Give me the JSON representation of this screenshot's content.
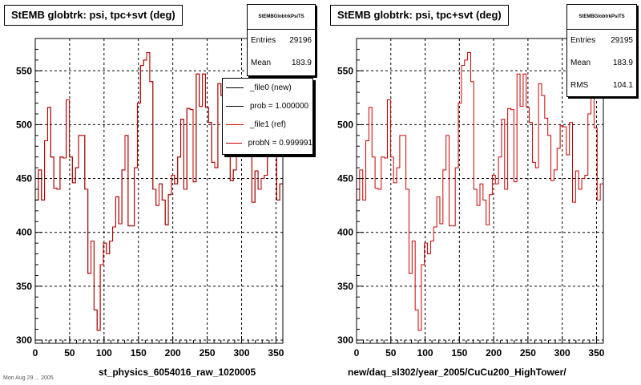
{
  "chart_data": [
    {
      "type": "line",
      "title": "StEMB globtrk: psi, tpc+svt (deg)",
      "xlabel": "st_physics_6054016_raw_1020005",
      "xlim": [
        0,
        360
      ],
      "ylim": [
        297,
        580
      ],
      "x_ticks": [
        0,
        50,
        100,
        150,
        200,
        250,
        300,
        350
      ],
      "y_ticks": [
        300,
        350,
        400,
        450,
        500,
        550
      ],
      "grid": true,
      "series": [
        {
          "name": "_file0 (new)",
          "color": "#000000"
        },
        {
          "name": "_file1 (ref)",
          "color": "#cc0000"
        }
      ],
      "values": [
        430,
        458,
        430,
        485,
        516,
        470,
        441,
        440,
        470,
        469,
        523,
        470,
        446,
        460,
        490,
        490,
        440,
        362,
        392,
        328,
        309,
        370,
        390,
        380,
        392,
        405,
        433,
        408,
        458,
        490,
        406,
        406,
        460,
        520,
        555,
        560,
        567,
        540,
        440,
        425,
        445,
        430,
        407,
        435,
        453,
        445,
        470,
        505,
        440,
        515,
        514,
        447,
        547,
        517,
        547,
        516,
        502,
        465,
        460,
        538,
        527,
        506,
        490,
        448,
        458,
        478,
        499,
        498,
        472,
        502,
        428,
        457,
        440,
        450,
        453,
        510,
        548,
        497,
        430,
        445
      ],
      "stats": {
        "header": "StEMBGlobtrkPsiTS",
        "entries_label": "Entries",
        "entries": "29196",
        "mean_label": "Mean",
        "mean": "183.9"
      },
      "legend": [
        {
          "label": "_file0 (new)",
          "color": "#000000"
        },
        {
          "label": "prob = 1.000000",
          "color": "#000000"
        },
        {
          "label": "_file1 (ref)",
          "color": "#cc0000"
        },
        {
          "label": "probN = 0.999991",
          "color": "#cc0000"
        }
      ]
    },
    {
      "type": "line",
      "title": "StEMB globtrk: psi, tpc+svt (deg)",
      "xlabel": "new/daq_sl302/year_2005/CuCu200_HighTower/",
      "xlim": [
        0,
        360
      ],
      "ylim": [
        297,
        580
      ],
      "x_ticks": [
        0,
        50,
        100,
        150,
        200,
        250,
        300,
        350
      ],
      "y_ticks": [
        300,
        350,
        400,
        450,
        500,
        550
      ],
      "grid": true,
      "series": [
        {
          "name": "",
          "color": "#cc0000"
        }
      ],
      "values": [
        430,
        458,
        430,
        485,
        516,
        470,
        441,
        440,
        470,
        469,
        523,
        470,
        446,
        460,
        490,
        490,
        440,
        362,
        392,
        328,
        309,
        370,
        390,
        380,
        392,
        405,
        433,
        408,
        458,
        490,
        406,
        406,
        460,
        520,
        555,
        560,
        567,
        540,
        440,
        425,
        445,
        430,
        407,
        435,
        453,
        445,
        470,
        505,
        440,
        515,
        514,
        447,
        547,
        517,
        547,
        516,
        502,
        465,
        460,
        538,
        527,
        506,
        490,
        448,
        458,
        478,
        499,
        498,
        472,
        502,
        428,
        457,
        440,
        450,
        453,
        510,
        548,
        497,
        430,
        445
      ],
      "stats": {
        "header": "StEMBGlobtrkPsiTS",
        "entries_label": "Entries",
        "entries": "29195",
        "mean_label": "Mean",
        "mean": "183.9",
        "rms_label": "RMS",
        "rms": "104.1"
      }
    }
  ],
  "footer": "Mon Aug 29 ... 2005"
}
